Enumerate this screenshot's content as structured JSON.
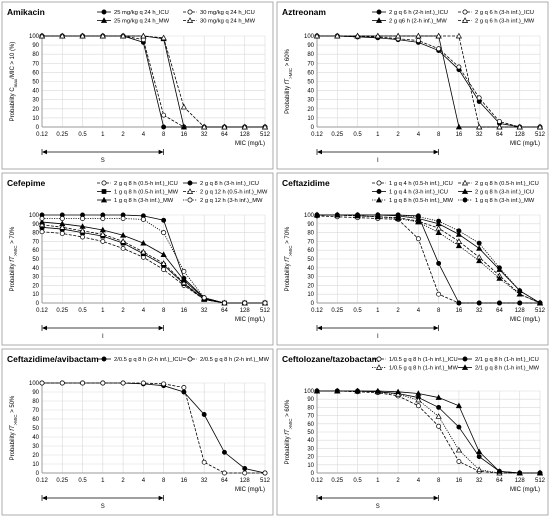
{
  "chart_data": [
    {
      "type": "line",
      "title": "Amikacin",
      "ylabel": "Probability C_max/MIC > 10 (%)",
      "xlabel": "MIC (mg/L)",
      "categories": [
        "0.12",
        "0.25",
        "0.5",
        "1",
        "2",
        "4",
        "8",
        "16",
        "32",
        "64",
        "128",
        "512"
      ],
      "yticks": [
        "0",
        "10",
        "20",
        "30",
        "40",
        "50",
        "60",
        "70",
        "80",
        "90",
        "100"
      ],
      "ylim": [
        0,
        100
      ],
      "grid": true,
      "legend_position": "top",
      "susceptibility_label": "S",
      "susceptibility_range": [
        "0.12",
        "8"
      ],
      "series": [
        {
          "name": "25 mg/kg q 24 h_ICU",
          "values": [
            100,
            100,
            100,
            100,
            100,
            93,
            0,
            0,
            0,
            0,
            0,
            0
          ],
          "line": "solid",
          "marker": "filled-circle"
        },
        {
          "name": "30 mg/kg q 24 h_ICU",
          "values": [
            100,
            100,
            100,
            100,
            100,
            96,
            13,
            0,
            0,
            0,
            0,
            0
          ],
          "line": "dashed",
          "marker": "open-circle"
        },
        {
          "name": "25 mg/kg q 24 h_MW",
          "values": [
            100,
            100,
            100,
            100,
            100,
            100,
            97,
            0,
            0,
            0,
            0,
            0
          ],
          "line": "solid",
          "marker": "filled-triangle"
        },
        {
          "name": "30 mg/kg q 24 h_MW",
          "values": [
            100,
            100,
            100,
            100,
            100,
            100,
            98,
            22,
            0,
            0,
            0,
            0
          ],
          "line": "dashed",
          "marker": "open-triangle"
        }
      ]
    },
    {
      "type": "line",
      "title": "Aztreonam",
      "ylabel": "Probability fT>MIC > 60%",
      "xlabel": "MIC (mg/L)",
      "categories": [
        "0.12",
        "0.25",
        "0.5",
        "1",
        "2",
        "4",
        "8",
        "16",
        "32",
        "64",
        "128",
        "512"
      ],
      "yticks": [
        "0",
        "10",
        "20",
        "30",
        "40",
        "50",
        "60",
        "70",
        "80",
        "90",
        "100"
      ],
      "ylim": [
        0,
        100
      ],
      "grid": true,
      "legend_position": "top",
      "susceptibility_label": "I",
      "susceptibility_range": [
        "0.12",
        "8"
      ],
      "series": [
        {
          "name": "2 g q 6 h (2-h inf.)_ICU",
          "values": [
            100,
            100,
            99,
            98,
            96,
            93,
            84,
            63,
            28,
            4,
            0,
            0
          ],
          "line": "solid",
          "marker": "filled-circle"
        },
        {
          "name": "2 g q 6 h (3-h inf.)_ICU",
          "values": [
            100,
            100,
            99,
            99,
            97,
            95,
            86,
            66,
            32,
            6,
            0,
            0
          ],
          "line": "dashed",
          "marker": "open-circle"
        },
        {
          "name": "2 g q6 h (2-h inf.)_MW",
          "values": [
            100,
            100,
            100,
            100,
            100,
            100,
            100,
            0,
            0,
            0,
            0,
            0
          ],
          "line": "solid",
          "marker": "filled-triangle"
        },
        {
          "name": "2 g q 6 h (3-h inf.)_MW",
          "values": [
            100,
            100,
            100,
            100,
            100,
            100,
            100,
            100,
            0,
            0,
            0,
            0
          ],
          "line": "dashed",
          "marker": "open-triangle"
        }
      ]
    },
    {
      "type": "line",
      "title": "Cefepime",
      "ylabel": "Probability fT>MIC > 70%",
      "xlabel": "MIC (mg/L)",
      "categories": [
        "0.12",
        "0.25",
        "0.5",
        "1",
        "2",
        "4",
        "8",
        "16",
        "32",
        "64",
        "128",
        "512"
      ],
      "yticks": [
        "0",
        "10",
        "20",
        "30",
        "40",
        "50",
        "60",
        "70",
        "80",
        "90",
        "100"
      ],
      "ylim": [
        0,
        100
      ],
      "grid": true,
      "legend_position": "top",
      "susceptibility_label": "I",
      "susceptibility_range": [
        "0.12",
        "8"
      ],
      "series": [
        {
          "name": "2 g q 8 h (0.5-h inf.)_ICU",
          "values": [
            81,
            79,
            75,
            70,
            62,
            52,
            38,
            20,
            4,
            0,
            0,
            0
          ],
          "line": "dashed",
          "marker": "open-circle"
        },
        {
          "name": "2 g q 8 h (3-h inf.)_ICU",
          "values": [
            100,
            100,
            100,
            100,
            100,
            99,
            94,
            28,
            6,
            0,
            0,
            0
          ],
          "line": "solid",
          "marker": "filled-circle"
        },
        {
          "name": "1 g q 8 h (0.5-h inf.)_MW",
          "values": [
            86,
            84,
            80,
            76,
            68,
            56,
            43,
            22,
            4,
            0,
            0,
            0
          ],
          "line": "solid",
          "marker": "filled-square"
        },
        {
          "name": "2 g q 12 h (0.5-h inf.)_MW",
          "values": [
            89,
            86,
            82,
            78,
            70,
            58,
            45,
            23,
            4,
            0,
            0,
            0
          ],
          "line": "dashed",
          "marker": "open-triangle"
        },
        {
          "name": "1 g q 8 h (3-h inf.)_MW",
          "values": [
            92,
            90,
            87,
            83,
            77,
            68,
            55,
            26,
            5,
            0,
            0,
            0
          ],
          "line": "solid",
          "marker": "filled-triangle"
        },
        {
          "name": "2 g q 12 h (3-h inf.)_MW",
          "values": [
            96,
            96,
            96,
            96,
            96,
            95,
            80,
            36,
            6,
            0,
            0,
            0
          ],
          "line": "dotted",
          "marker": "open-circle"
        }
      ]
    },
    {
      "type": "line",
      "title": "Ceftazidime",
      "ylabel": "Probability fT>MIC > 70%",
      "xlabel": "MIC (mg/L)",
      "categories": [
        "0.12",
        "0.25",
        "0.5",
        "1",
        "2",
        "4",
        "8",
        "16",
        "32",
        "64",
        "128",
        "512"
      ],
      "yticks": [
        "0",
        "10",
        "20",
        "30",
        "40",
        "50",
        "60",
        "70",
        "80",
        "90",
        "100"
      ],
      "ylim": [
        0,
        100
      ],
      "grid": true,
      "legend_position": "top",
      "susceptibility_label": "I",
      "susceptibility_range": [
        "0.12",
        "8"
      ],
      "series": [
        {
          "name": "1 g q 4 h (0.5-h inf.)_ICU",
          "values": [
            99,
            98,
            97,
            96,
            95,
            73,
            10,
            0,
            0,
            0,
            0,
            0
          ],
          "line": "dashed",
          "marker": "open-circle"
        },
        {
          "name": "2 g q 8 h (0.5-h inf.)_ICU",
          "values": [
            100,
            100,
            99,
            98,
            97,
            93,
            85,
            70,
            52,
            31,
            10,
            0
          ],
          "line": "dashed",
          "marker": "open-triangle"
        },
        {
          "name": "1 g q 4 h (3-h inf.)_ICU",
          "values": [
            100,
            100,
            100,
            100,
            100,
            99,
            45,
            0,
            0,
            0,
            0,
            0
          ],
          "line": "solid",
          "marker": "filled-circle"
        },
        {
          "name": "2 g q 8 h (3-h inf.)_ICU",
          "values": [
            100,
            100,
            100,
            100,
            99,
            96,
            90,
            78,
            62,
            38,
            14,
            0
          ],
          "line": "solid",
          "marker": "filled-triangle"
        },
        {
          "name": "1 g q 8 h (0.5-h inf.)_MW",
          "values": [
            100,
            100,
            99,
            98,
            96,
            92,
            80,
            65,
            48,
            28,
            10,
            0
          ],
          "line": "dotted",
          "marker": "filled-triangle"
        },
        {
          "name": "1 g q 8 h (3-h inf.)_MW",
          "values": [
            100,
            100,
            100,
            100,
            100,
            98,
            93,
            82,
            68,
            40,
            14,
            0
          ],
          "line": "dotted",
          "marker": "filled-circle"
        }
      ]
    },
    {
      "type": "line",
      "title": "Ceftazidime/avibactam",
      "ylabel": "Probability fT>MIC > 50%",
      "xlabel": "MIC (mg/L)",
      "categories": [
        "0.12",
        "0.25",
        "0.5",
        "1",
        "2",
        "4",
        "8",
        "16",
        "32",
        "64",
        "128",
        "512"
      ],
      "yticks": [
        "0",
        "10",
        "20",
        "30",
        "40",
        "50",
        "60",
        "70",
        "80",
        "90",
        "100"
      ],
      "ylim": [
        0,
        100
      ],
      "grid": true,
      "legend_position": "top",
      "susceptibility_label": "S",
      "susceptibility_range": [
        "0.12",
        "8"
      ],
      "series": [
        {
          "name": "2/0.5 g q 8 h (2-h inf.)_ICU",
          "values": [
            100,
            100,
            100,
            100,
            100,
            99,
            97,
            90,
            65,
            23,
            5,
            0
          ],
          "line": "solid",
          "marker": "filled-circle"
        },
        {
          "name": "2/0.5 g q 8 h (2-h inf.)_MW",
          "values": [
            100,
            100,
            100,
            100,
            100,
            100,
            99,
            95,
            12,
            0,
            0,
            0
          ],
          "line": "dashed",
          "marker": "open-circle"
        }
      ]
    },
    {
      "type": "line",
      "title": "Ceftolozane/tazobactam",
      "ylabel": "Probability fT>MIC > 60%",
      "xlabel": "MIC (mg/L)",
      "categories": [
        "0.12",
        "0.25",
        "0.5",
        "1",
        "2",
        "4",
        "8",
        "16",
        "32",
        "64",
        "128",
        "512"
      ],
      "yticks": [
        "0",
        "10",
        "20",
        "30",
        "40",
        "50",
        "60",
        "70",
        "80",
        "90",
        "100"
      ],
      "ylim": [
        0,
        100
      ],
      "grid": true,
      "legend_position": "top",
      "susceptibility_label": "S",
      "susceptibility_range": [
        "0.12",
        "8"
      ],
      "series": [
        {
          "name": "1/0.5 g q 8 h (1-h inf.)_ICU",
          "values": [
            100,
            100,
            99,
            98,
            94,
            82,
            57,
            14,
            2,
            0,
            0,
            0
          ],
          "line": "dashed",
          "marker": "open-circle"
        },
        {
          "name": "2/1 g q 8 h (1-h inf.)_ICU",
          "values": [
            100,
            100,
            100,
            99,
            97,
            92,
            80,
            56,
            20,
            2,
            0,
            0
          ],
          "line": "solid",
          "marker": "filled-circle"
        },
        {
          "name": "1/0.5 g q 8 h (1-h inf.)_MW",
          "values": [
            100,
            100,
            100,
            99,
            96,
            89,
            69,
            28,
            4,
            0,
            0,
            0
          ],
          "line": "dotted",
          "marker": "open-triangle"
        },
        {
          "name": "2/1 g q 8 h (1-h inf.)_MW",
          "values": [
            100,
            100,
            100,
            100,
            99,
            97,
            92,
            82,
            26,
            2,
            0,
            0
          ],
          "line": "solid",
          "marker": "filled-triangle"
        }
      ]
    }
  ]
}
